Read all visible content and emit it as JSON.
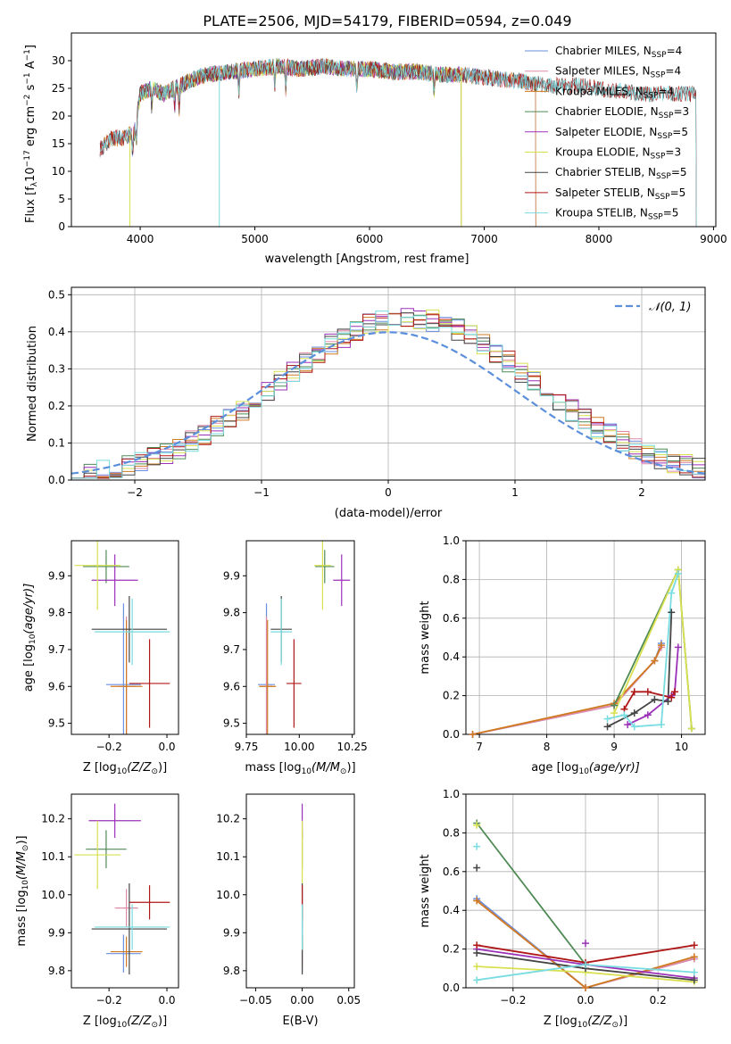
{
  "title": "PLATE=2506, MJD=54179, FIBERID=0594, z=0.049",
  "colors": {
    "Chabrier MILES": "#6a8fe0",
    "Salpeter MILES": "#e08aa8",
    "Kroupa MILES": "#d07a20",
    "Chabrier ELODIE": "#4f8a55",
    "Salpeter ELODIE": "#9b30b8",
    "Kroupa ELODIE": "#d8e050",
    "Chabrier STELIB": "#444444",
    "Salpeter STELIB": "#b01818",
    "Kroupa STELIB": "#78dce0",
    "normal": "#5b8fdc"
  },
  "chart_data": [
    {
      "id": "spectrum",
      "type": "line",
      "xlabel": "wavelength [Angstrom, rest frame]",
      "ylabel": "Flux [f",
      "ylabel_parts": [
        "Flux [f",
        "λ",
        "10",
        "−17",
        " erg cm",
        "−2",
        " s",
        "−1",
        " A",
        "−1",
        "]"
      ],
      "xlim": [
        3400,
        9020
      ],
      "ylim": [
        0,
        35
      ],
      "xticks": [
        4000,
        5000,
        6000,
        7000,
        8000,
        9000
      ],
      "yticks": [
        0,
        5,
        10,
        15,
        20,
        25,
        30
      ],
      "grid": false,
      "legend_position": "upper-right",
      "legend": [
        {
          "label": "Chabrier MILES, N",
          "sub": "SSP",
          "tail": "=4"
        },
        {
          "label": "Salpeter MILES, N",
          "sub": "SSP",
          "tail": "=4"
        },
        {
          "label": "Kroupa MILES, N",
          "sub": "SSP",
          "tail": "=4"
        },
        {
          "label": "Chabrier ELODIE, N",
          "sub": "SSP",
          "tail": "=3"
        },
        {
          "label": "Salpeter ELODIE, N",
          "sub": "SSP",
          "tail": "=5"
        },
        {
          "label": "Kroupa ELODIE, N",
          "sub": "SSP",
          "tail": "=3"
        },
        {
          "label": "Chabrier STELIB, N",
          "sub": "SSP",
          "tail": "=5"
        },
        {
          "label": "Salpeter STELIB, N",
          "sub": "SSP",
          "tail": "=5"
        },
        {
          "label": "Kroupa STELIB, N",
          "sub": "SSP",
          "tail": "=5"
        }
      ],
      "continuum": {
        "x": [
          3650,
          3750,
          3850,
          3950,
          4000,
          4100,
          4200,
          4300,
          4400,
          4500,
          4600,
          4800,
          5000,
          5200,
          5400,
          5600,
          5800,
          6000,
          6200,
          6400,
          6600,
          6800,
          7000,
          7200,
          7400,
          7600,
          7800,
          8000,
          8200,
          8400,
          8600,
          8800
        ],
        "y": [
          14,
          16,
          16,
          17,
          24,
          25,
          24,
          25,
          26,
          27,
          27.5,
          28,
          28.5,
          29,
          28.5,
          29,
          28.5,
          28.5,
          28,
          28,
          27.5,
          27.5,
          27,
          26.5,
          26,
          25.5,
          25.5,
          25,
          24.5,
          24,
          24,
          24
        ]
      },
      "series": [
        {
          "name": "Chabrier MILES",
          "x_range": [
            3650,
            7450
          ]
        },
        {
          "name": "Salpeter MILES",
          "x_range": [
            3650,
            7450
          ]
        },
        {
          "name": "Kroupa MILES",
          "x_range": [
            3650,
            7450
          ]
        },
        {
          "name": "Chabrier ELODIE",
          "x_range": [
            3900,
            6800
          ]
        },
        {
          "name": "Salpeter ELODIE",
          "x_range": [
            3900,
            6800
          ]
        },
        {
          "name": "Kroupa ELODIE",
          "x_range": [
            3900,
            6800
          ]
        },
        {
          "name": "Chabrier STELIB",
          "x_range": [
            3650,
            8850
          ]
        },
        {
          "name": "Salpeter STELIB",
          "x_range": [
            3650,
            8850
          ]
        },
        {
          "name": "Kroupa STELIB",
          "x_range": [
            3650,
            8850
          ]
        }
      ]
    },
    {
      "id": "residuals",
      "type": "line",
      "xlabel": "(data-model)/error",
      "ylabel": "Normed distribution",
      "xlim": [
        -2.5,
        2.5
      ],
      "ylim": [
        0,
        0.52
      ],
      "xticks": [
        -2,
        -1,
        0,
        1,
        2
      ],
      "yticks": [
        0.0,
        0.1,
        0.2,
        0.3,
        0.4,
        0.5
      ],
      "grid": true,
      "legend_position": "upper-right",
      "legend": [
        {
          "label": "𝒩(0, 1)",
          "style": "dashed"
        }
      ],
      "normal_curve": {
        "mean": 0,
        "sigma": 1,
        "peak": 0.399
      },
      "bin_width": 0.1,
      "bin_start": -2.5
    },
    {
      "id": "age_vs_Z",
      "type": "scatter",
      "xlabel": "Z [log",
      "xlabel_parts": [
        "Z [log",
        "10",
        "(Z/Z",
        "⊙",
        ")]"
      ],
      "ylabel_parts": [
        "age  [log",
        "10",
        "(age/yr)]"
      ],
      "xlim": [
        -0.33,
        0.04
      ],
      "ylim": [
        9.47,
        9.995
      ],
      "xticks": [
        -0.2,
        0.0
      ],
      "yticks": [
        9.5,
        9.6,
        9.7,
        9.8,
        9.9
      ],
      "grid": false,
      "points": [
        {
          "series": "Chabrier MILES",
          "x": -0.15,
          "xerr": 0.06,
          "y": 9.605,
          "yerr": 0.22
        },
        {
          "series": "Salpeter MILES",
          "x": -0.14,
          "xerr": 0.03,
          "y": 9.6,
          "yerr": 0.19
        },
        {
          "series": "Kroupa MILES",
          "x": -0.14,
          "xerr": 0.055,
          "y": 9.6,
          "yerr": 0.18
        },
        {
          "series": "Chabrier ELODIE",
          "x": -0.21,
          "xerr": 0.08,
          "y": 9.925,
          "yerr": 0.045
        },
        {
          "series": "Salpeter ELODIE",
          "x": -0.18,
          "xerr": 0.08,
          "y": 9.888,
          "yerr": 0.07
        },
        {
          "series": "Kroupa ELODIE",
          "x": -0.24,
          "xerr": 0.08,
          "y": 9.928,
          "yerr": 0.12
        },
        {
          "series": "Chabrier STELIB",
          "x": -0.13,
          "xerr": 0.13,
          "y": 9.755,
          "yerr": 0.09
        },
        {
          "series": "Salpeter STELIB",
          "x": -0.06,
          "xerr": 0.07,
          "y": 9.608,
          "yerr": 0.12
        },
        {
          "series": "Kroupa STELIB",
          "x": -0.12,
          "xerr": 0.13,
          "y": 9.748,
          "yerr": 0.09
        }
      ]
    },
    {
      "id": "age_vs_mass",
      "type": "scatter",
      "xlabel_parts": [
        "mass [log",
        "10",
        "(M/M",
        "⊙",
        ")]"
      ],
      "xlim": [
        9.75,
        10.26
      ],
      "ylim": [
        9.47,
        9.995
      ],
      "xticks": [
        9.75,
        10.0,
        10.25
      ],
      "xtick_labels": [
        "9.75",
        "10.00",
        "10.25"
      ],
      "yticks": [
        9.5,
        9.6,
        9.7,
        9.8,
        9.9
      ],
      "grid": false,
      "points": [
        {
          "series": "Chabrier MILES",
          "x": 9.845,
          "xerr": 0.04,
          "y": 9.605,
          "yerr": 0.22
        },
        {
          "series": "Salpeter MILES",
          "x": 9.845,
          "xerr": 0.03,
          "y": 9.6,
          "yerr": 0.19
        },
        {
          "series": "Kroupa MILES",
          "x": 9.85,
          "xerr": 0.04,
          "y": 9.6,
          "yerr": 0.18
        },
        {
          "series": "Chabrier ELODIE",
          "x": 10.12,
          "xerr": 0.045,
          "y": 9.925,
          "yerr": 0.045
        },
        {
          "series": "Salpeter ELODIE",
          "x": 10.2,
          "xerr": 0.04,
          "y": 9.888,
          "yerr": 0.07
        },
        {
          "series": "Kroupa ELODIE",
          "x": 10.11,
          "xerr": 0.04,
          "y": 9.928,
          "yerr": 0.12
        },
        {
          "series": "Chabrier STELIB",
          "x": 9.915,
          "xerr": 0.05,
          "y": 9.755,
          "yerr": 0.09
        },
        {
          "series": "Salpeter STELIB",
          "x": 9.975,
          "xerr": 0.035,
          "y": 9.608,
          "yerr": 0.12
        },
        {
          "series": "Kroupa STELIB",
          "x": 9.915,
          "xerr": 0.05,
          "y": 9.748,
          "yerr": 0.09
        }
      ]
    },
    {
      "id": "weight_vs_age",
      "type": "line",
      "xlabel_parts": [
        "age  [log",
        "10",
        "(age/yr)]"
      ],
      "ylabel": "mass weight",
      "xlim": [
        6.8,
        10.35
      ],
      "ylim": [
        0,
        1.0
      ],
      "xticks": [
        7,
        8,
        9,
        10
      ],
      "yticks": [
        0.0,
        0.2,
        0.4,
        0.6,
        0.8,
        1.0
      ],
      "grid": true,
      "series": [
        {
          "name": "Chabrier MILES",
          "x": [
            6.9,
            9.0,
            9.6,
            9.7
          ],
          "y": [
            0.0,
            0.15,
            0.38,
            0.47
          ]
        },
        {
          "name": "Salpeter MILES",
          "x": [
            6.9,
            9.0,
            9.6,
            9.7
          ],
          "y": [
            0.0,
            0.15,
            0.38,
            0.45
          ]
        },
        {
          "name": "Kroupa MILES",
          "x": [
            6.9,
            9.0,
            9.6,
            9.7
          ],
          "y": [
            0.0,
            0.16,
            0.38,
            0.46
          ]
        },
        {
          "name": "Chabrier ELODIE",
          "x": [
            9.0,
            9.95,
            10.15
          ],
          "y": [
            0.15,
            0.85,
            0.03
          ]
        },
        {
          "name": "Salpeter ELODIE",
          "x": [
            9.2,
            9.5,
            9.85,
            9.9,
            9.95
          ],
          "y": [
            0.05,
            0.1,
            0.2,
            0.22,
            0.45
          ]
        },
        {
          "name": "Kroupa ELODIE",
          "x": [
            9.0,
            9.95,
            10.15
          ],
          "y": [
            0.11,
            0.85,
            0.03
          ]
        },
        {
          "name": "Chabrier STELIB",
          "x": [
            8.9,
            9.3,
            9.6,
            9.8,
            9.85
          ],
          "y": [
            0.04,
            0.11,
            0.18,
            0.17,
            0.63
          ]
        },
        {
          "name": "Salpeter STELIB",
          "x": [
            9.15,
            9.3,
            9.5,
            9.85,
            9.9
          ],
          "y": [
            0.13,
            0.22,
            0.22,
            0.19,
            0.22
          ]
        },
        {
          "name": "Kroupa STELIB",
          "x": [
            8.9,
            9.15,
            9.3,
            9.7,
            9.85,
            9.95
          ],
          "y": [
            0.08,
            0.1,
            0.04,
            0.05,
            0.73,
            0.83
          ]
        }
      ]
    },
    {
      "id": "mass_vs_Z",
      "type": "scatter",
      "xlabel_parts": [
        "Z [log",
        "10",
        "(Z/Z",
        "⊙",
        ")]"
      ],
      "ylabel_parts": [
        "mass [log",
        "10",
        "(M/M",
        "⊙",
        ")]"
      ],
      "xlim": [
        -0.33,
        0.04
      ],
      "ylim": [
        9.755,
        10.265
      ],
      "xticks": [
        -0.2,
        0.0
      ],
      "yticks": [
        9.8,
        9.9,
        10.0,
        10.1,
        10.2
      ],
      "grid": false,
      "points": [
        {
          "series": "Chabrier MILES",
          "x": -0.15,
          "xerr": 0.06,
          "y": 9.845,
          "yerr": 0.05
        },
        {
          "series": "Salpeter MILES",
          "x": -0.14,
          "xerr": 0.04,
          "y": 9.965,
          "yerr": 0.05
        },
        {
          "series": "Kroupa MILES",
          "x": -0.14,
          "xerr": 0.055,
          "y": 9.85,
          "yerr": 0.04
        },
        {
          "series": "Chabrier ELODIE",
          "x": -0.21,
          "xerr": 0.07,
          "y": 10.12,
          "yerr": 0.05
        },
        {
          "series": "Salpeter ELODIE",
          "x": -0.18,
          "xerr": 0.09,
          "y": 10.195,
          "yerr": 0.045
        },
        {
          "series": "Kroupa ELODIE",
          "x": -0.24,
          "xerr": 0.08,
          "y": 10.105,
          "yerr": 0.09
        },
        {
          "series": "Chabrier STELIB",
          "x": -0.13,
          "xerr": 0.13,
          "y": 9.91,
          "yerr": 0.12
        },
        {
          "series": "Salpeter STELIB",
          "x": -0.06,
          "xerr": 0.07,
          "y": 9.98,
          "yerr": 0.045
        },
        {
          "series": "Kroupa STELIB",
          "x": -0.12,
          "xerr": 0.13,
          "y": 9.915,
          "yerr": 0.06
        }
      ]
    },
    {
      "id": "mass_vs_EBV",
      "type": "scatter",
      "xlabel": "E(B-V)",
      "xlim": [
        -0.06,
        0.056
      ],
      "ylim": [
        9.755,
        10.265
      ],
      "xticks": [
        -0.05,
        0.0,
        0.05
      ],
      "xtick_labels": [
        "−0.05",
        "0.00",
        "0.05"
      ],
      "yticks": [
        9.8,
        9.9,
        10.0,
        10.1,
        10.2
      ],
      "grid": false,
      "points": [
        {
          "series": "Chabrier MILES",
          "x": 0.0,
          "y": 9.845,
          "yerr": 0.05
        },
        {
          "series": "Salpeter MILES",
          "x": 0.0,
          "y": 9.965,
          "yerr": 0.05
        },
        {
          "series": "Kroupa MILES",
          "x": 0.0,
          "y": 9.85,
          "yerr": 0.04
        },
        {
          "series": "Chabrier ELODIE",
          "x": 0.0,
          "y": 10.12,
          "yerr": 0.05
        },
        {
          "series": "Salpeter ELODIE",
          "x": 0.0,
          "y": 10.195,
          "yerr": 0.045
        },
        {
          "series": "Kroupa ELODIE",
          "x": 0.0,
          "y": 10.105,
          "yerr": 0.09
        },
        {
          "series": "Chabrier STELIB",
          "x": 0.0,
          "y": 9.91,
          "yerr": 0.12
        },
        {
          "series": "Salpeter STELIB",
          "x": 0.0,
          "y": 9.98,
          "yerr": 0.045
        },
        {
          "series": "Kroupa STELIB",
          "x": 0.0,
          "y": 9.915,
          "yerr": 0.06
        }
      ]
    },
    {
      "id": "weight_vs_Z",
      "type": "line",
      "xlabel_parts": [
        "Z [log",
        "10",
        "(Z/Z",
        "⊙",
        ")]"
      ],
      "ylabel": "mass weight",
      "xlim": [
        -0.33,
        0.33
      ],
      "ylim": [
        0,
        1.0
      ],
      "xticks": [
        -0.2,
        0.0,
        0.2
      ],
      "xtick_labels": [
        "−0.2",
        "0.0",
        "0.2"
      ],
      "yticks": [
        0.0,
        0.2,
        0.4,
        0.6,
        0.8,
        1.0
      ],
      "grid": true,
      "series": [
        {
          "name": "Chabrier MILES",
          "x": [
            -0.3,
            0.0,
            0.3
          ],
          "y": [
            0.46,
            0.0,
            0.15
          ]
        },
        {
          "name": "Salpeter MILES",
          "x": [
            -0.3,
            0.0,
            0.3
          ],
          "y": [
            0.45,
            0.0,
            0.15
          ]
        },
        {
          "name": "Kroupa MILES",
          "x": [
            -0.3,
            0.0,
            0.3
          ],
          "y": [
            0.45,
            0.0,
            0.16
          ]
        },
        {
          "name": "Chabrier ELODIE",
          "x": [
            -0.3,
            0.0
          ],
          "y": [
            0.85,
            0.12
          ]
        },
        {
          "name": "Salpeter ELODIE",
          "x": [
            -0.3,
            0.0,
            0.3
          ],
          "y": [
            0.2,
            0.12,
            0.05
          ]
        },
        {
          "name": "Kroupa ELODIE",
          "x": [
            -0.3,
            0.0,
            0.3
          ],
          "y": [
            0.11,
            0.08,
            0.03
          ]
        },
        {
          "name": "Chabrier STELIB",
          "x": [
            -0.3,
            0.0,
            0.3
          ],
          "y": [
            0.18,
            0.1,
            0.04
          ]
        },
        {
          "name": "Salpeter STELIB",
          "x": [
            -0.3,
            0.0,
            0.3
          ],
          "y": [
            0.22,
            0.13,
            0.22
          ]
        },
        {
          "name": "Kroupa STELIB",
          "x": [
            -0.3,
            0.0,
            0.3
          ],
          "y": [
            0.04,
            0.12,
            0.08
          ]
        }
      ],
      "extra_marks": [
        {
          "series": "Kroupa STELIB",
          "x": -0.3,
          "y": 0.73
        },
        {
          "series": "Chabrier STELIB",
          "x": -0.3,
          "y": 0.62
        },
        {
          "series": "Salpeter ELODIE",
          "x": 0.0,
          "y": 0.23
        },
        {
          "series": "Kroupa ELODIE",
          "x": -0.3,
          "y": 0.84
        }
      ]
    }
  ]
}
